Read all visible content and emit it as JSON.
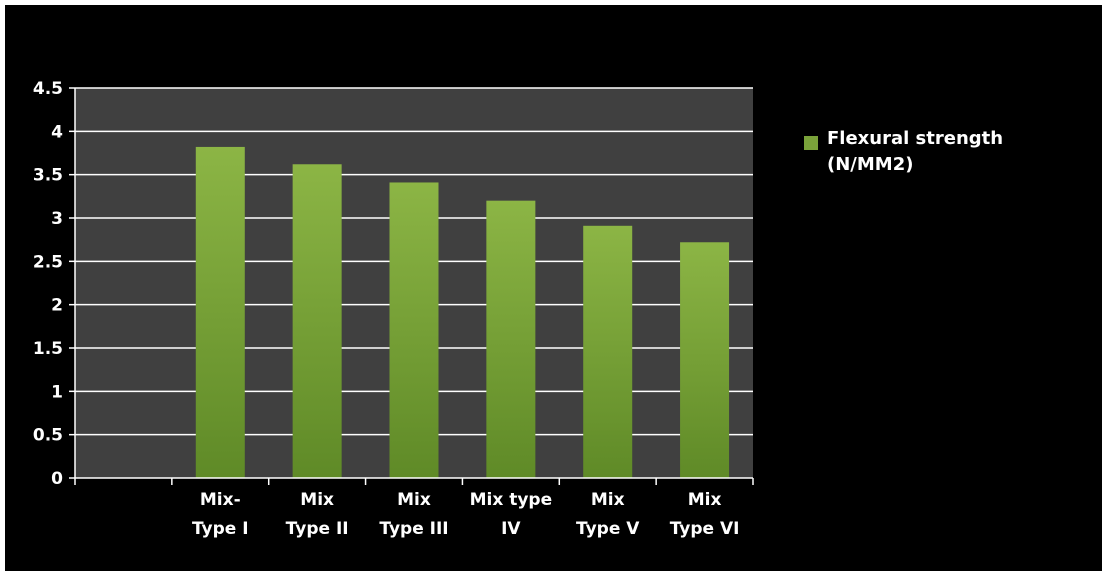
{
  "chart_data": {
    "type": "bar",
    "categories": [
      "",
      "Mix-\nType I",
      "Mix\nType II",
      "Mix\nType III",
      "Mix type\nIV",
      "Mix\nType V",
      "Mix\nType VI"
    ],
    "series": [
      {
        "name": "Flexural strength\n(N/MM2)",
        "values": [
          null,
          3.82,
          3.62,
          3.41,
          3.2,
          2.91,
          2.72
        ],
        "color": "#7aa23a"
      }
    ],
    "ylim": [
      0,
      4.5
    ],
    "yticks": [
      "0",
      "0.5",
      "1",
      "1.5",
      "2",
      "2.5",
      "3",
      "3.5",
      "4",
      "4.5"
    ],
    "grid": true,
    "legend": "right",
    "colors": {
      "background": "#000000",
      "plot_area": "#404040",
      "grid": "#ffffff",
      "text": "#ffffff",
      "bar_top": "#8cb545",
      "bar_bottom": "#5f8a27"
    }
  }
}
